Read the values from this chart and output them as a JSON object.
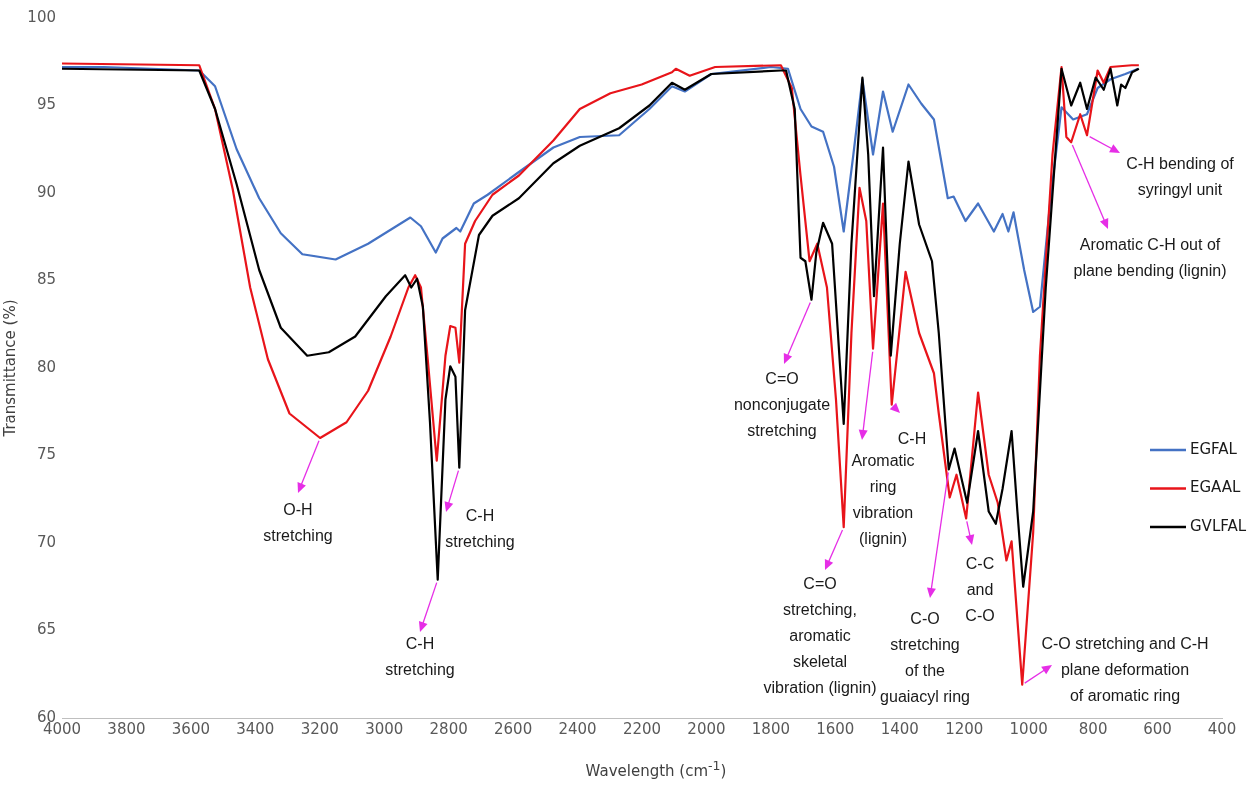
{
  "chart_data": {
    "type": "line",
    "xlabel": "Wavelength (cm$^{-1}$)",
    "ylabel": "Transmittance (%)",
    "xlim": [
      4000,
      400
    ],
    "xticks": [
      4000,
      3800,
      3600,
      3400,
      3200,
      3000,
      2800,
      2600,
      2400,
      2200,
      2000,
      1800,
      1600,
      1400,
      1200,
      1000,
      800,
      600,
      400
    ],
    "ylim": [
      60,
      100
    ],
    "yticks": [
      60,
      65,
      70,
      75,
      80,
      85,
      90,
      95,
      100
    ],
    "grid": false,
    "legend": "right",
    "marker": "none",
    "line_style": "solid",
    "series": [
      {
        "name": "EGFAL",
        "color": "#4472c4",
        "x": [
          4000,
          3870,
          3574,
          3525,
          3458,
          3388,
          3321,
          3254,
          3151,
          3050,
          2919,
          2886,
          2840,
          2819,
          2776,
          2764,
          2722,
          2679,
          2582,
          2475,
          2393,
          2271,
          2177,
          2107,
          2067,
          1985,
          1800,
          1747,
          1708,
          1674,
          1638,
          1604,
          1574,
          1544,
          1516,
          1483,
          1452,
          1422,
          1373,
          1333,
          1294,
          1251,
          1233,
          1196,
          1157,
          1108,
          1081,
          1063,
          1047,
          1014,
          986,
          965,
          932,
          898,
          862,
          819,
          786,
          746,
          700,
          660
        ],
        "values": [
          97.2,
          97.2,
          97.0,
          96.1,
          92.5,
          89.7,
          87.7,
          86.5,
          86.2,
          87.1,
          88.6,
          88.1,
          86.6,
          87.4,
          88.0,
          87.8,
          89.4,
          89.9,
          91.2,
          92.6,
          93.2,
          93.3,
          94.8,
          96.1,
          95.8,
          96.8,
          97.2,
          97.1,
          94.8,
          93.8,
          93.5,
          91.5,
          87.8,
          92.2,
          96.5,
          92.2,
          95.8,
          93.5,
          96.2,
          95.1,
          94.2,
          89.7,
          89.8,
          88.4,
          89.4,
          87.8,
          88.8,
          87.8,
          88.9,
          85.6,
          83.2,
          83.5,
          89.7,
          94.9,
          94.2,
          94.5,
          96.0,
          96.5,
          96.8,
          97.1
        ]
      },
      {
        "name": "EGAAL",
        "color": "#e8141a",
        "x": [
          4000,
          3574,
          3525,
          3470,
          3416,
          3361,
          3294,
          3199,
          3117,
          3050,
          2980,
          2925,
          2904,
          2886,
          2865,
          2837,
          2810,
          2795,
          2779,
          2767,
          2749,
          2718,
          2664,
          2582,
          2475,
          2393,
          2298,
          2201,
          2107,
          2095,
          2052,
          1973,
          1769,
          1735,
          1708,
          1680,
          1656,
          1626,
          1598,
          1574,
          1550,
          1525,
          1504,
          1483,
          1452,
          1425,
          1382,
          1340,
          1294,
          1279,
          1245,
          1224,
          1194,
          1157,
          1124,
          1096,
          1069,
          1053,
          1020,
          986,
          965,
          926,
          898,
          883,
          868,
          840,
          819,
          786,
          767,
          746,
          680,
          658
        ],
        "values": [
          97.4,
          97.3,
          94.8,
          90.2,
          84.6,
          80.5,
          77.4,
          76.0,
          76.9,
          78.7,
          81.8,
          84.6,
          85.3,
          84.6,
          80.5,
          74.7,
          80.7,
          82.4,
          82.3,
          80.3,
          87.1,
          88.4,
          89.9,
          91.0,
          93.0,
          94.8,
          95.7,
          96.2,
          96.9,
          97.1,
          96.7,
          97.2,
          97.3,
          96.0,
          91.0,
          86.1,
          87.1,
          84.6,
          78.2,
          70.9,
          82.0,
          90.3,
          88.4,
          81.1,
          89.4,
          77.9,
          85.5,
          82.0,
          79.7,
          77.4,
          72.6,
          73.9,
          71.4,
          78.6,
          73.9,
          72.3,
          69.0,
          70.1,
          61.9,
          70.6,
          80.7,
          92.2,
          97.2,
          93.2,
          92.9,
          94.5,
          93.3,
          97.0,
          96.3,
          97.2,
          97.3,
          97.3
        ]
      },
      {
        "name": "GVLFAL",
        "color": "#000000",
        "x": [
          4000,
          3574,
          3525,
          3458,
          3388,
          3321,
          3239,
          3172,
          3090,
          2995,
          2935,
          2916,
          2898,
          2880,
          2858,
          2834,
          2810,
          2795,
          2779,
          2767,
          2749,
          2706,
          2664,
          2582,
          2475,
          2393,
          2271,
          2177,
          2107,
          2067,
          1985,
          1769,
          1753,
          1726,
          1708,
          1693,
          1674,
          1659,
          1638,
          1610,
          1592,
          1574,
          1550,
          1516,
          1498,
          1480,
          1452,
          1428,
          1400,
          1373,
          1340,
          1300,
          1279,
          1248,
          1230,
          1191,
          1157,
          1124,
          1102,
          1081,
          1053,
          1035,
          1017,
          986,
          947,
          898,
          868,
          840,
          819,
          792,
          767,
          746,
          725,
          713,
          700,
          679,
          658
        ],
        "values": [
          97.1,
          97.0,
          94.8,
          90.5,
          85.6,
          82.3,
          80.7,
          80.9,
          81.8,
          84.1,
          85.3,
          84.6,
          85.1,
          83.5,
          76.9,
          67.9,
          78.2,
          80.1,
          79.5,
          74.3,
          83.3,
          87.6,
          88.7,
          89.7,
          91.7,
          92.7,
          93.7,
          95.0,
          96.3,
          95.9,
          96.8,
          97.0,
          97.0,
          94.8,
          86.3,
          86.1,
          83.9,
          86.6,
          88.3,
          87.1,
          82.0,
          76.8,
          87.1,
          96.6,
          92.2,
          84.1,
          92.6,
          80.7,
          87.1,
          91.8,
          88.2,
          86.1,
          82.0,
          74.2,
          75.4,
          72.3,
          76.4,
          71.8,
          71.1,
          73.1,
          76.4,
          71.8,
          67.5,
          71.8,
          84.6,
          97.1,
          95.0,
          96.3,
          94.8,
          96.6,
          95.9,
          97.1,
          95.0,
          96.2,
          96.0,
          96.9,
          97.1
        ]
      }
    ],
    "annotations": [
      {
        "text": "O-H\nstretching",
        "x": 3199,
        "y": 76.0
      },
      {
        "text": "C-H\nstretching",
        "x": 2834,
        "y": 67.9
      },
      {
        "text": "C-H\nstretching",
        "x": 2767,
        "y": 74.3
      },
      {
        "text": "C=O\nnonconjugate\nstretching",
        "x": 1674,
        "y": 83.9
      },
      {
        "text": "C=O\nstretching,\naromatic\nskeletal\nvibration (lignin)",
        "x": 1574,
        "y": 70.9
      },
      {
        "text": "Aromatic\nring\nvibration\n(lignin)",
        "x": 1483,
        "y": 81.1
      },
      {
        "text": "C-H",
        "x": 1425,
        "y": 77.9
      },
      {
        "text": "C-O\nstretching\nof the\nguaiacyl ring",
        "x": 1248,
        "y": 74.2
      },
      {
        "text": "C-C\nand\nC-O",
        "x": 1194,
        "y": 71.4
      },
      {
        "text": "C-O stretching and C-H\nplane deformation\nof aromatic ring",
        "x": 1020,
        "y": 61.9
      },
      {
        "text": "Aromatic C-H out of\nplane bending (lignin)",
        "x": 868,
        "y": 92.9
      },
      {
        "text": "C-H bending of\nsyringyl unit",
        "x": 819,
        "y": 93.3
      }
    ]
  }
}
